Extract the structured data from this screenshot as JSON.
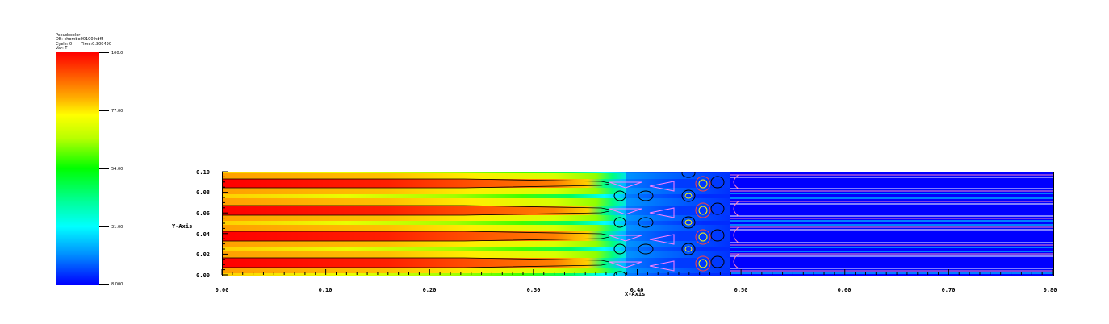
{
  "legend": {
    "lines": [
      "Pseudocolor",
      "DB: chombo00100.hdf5",
      "Cycle: 0       Time:0.300490",
      "Var: T"
    ],
    "colorbar_labels": [
      "100.0",
      "77.00",
      "54.00",
      "31.00",
      "8.000"
    ],
    "colors": [
      "#ff0000",
      "#ffff00",
      "#00ff00",
      "#00ffff",
      "#0000ff"
    ]
  },
  "chart_data": {
    "type": "heatmap",
    "title": "",
    "xlabel": "X-Axis",
    "ylabel": "Y-Axis",
    "xlim": [
      0.0,
      0.8
    ],
    "ylim": [
      0.0,
      0.1
    ],
    "xticks": [
      "0.00",
      "0.10",
      "0.20",
      "0.30",
      "0.40",
      "0.50",
      "0.60",
      "0.70",
      "0.80"
    ],
    "yticks": [
      "0.00",
      "0.02",
      "0.04",
      "0.06",
      "0.08",
      "0.10"
    ],
    "variable": "T",
    "value_range": [
      8.0,
      100.0
    ],
    "colormap": "rainbow (blue-low, red-high)",
    "contour_lines": true
  }
}
